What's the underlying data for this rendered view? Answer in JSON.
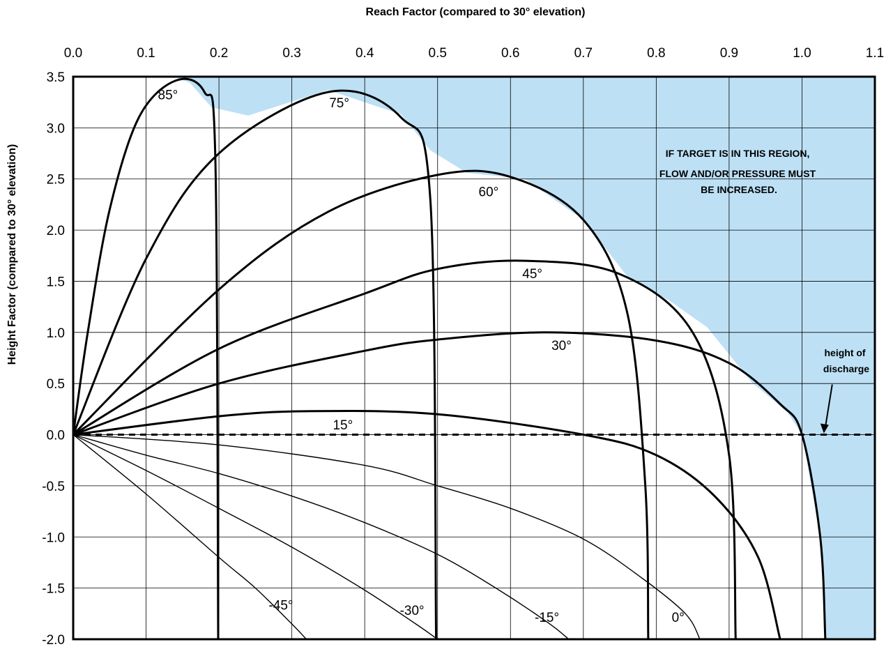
{
  "chart_data": {
    "type": "line",
    "title": "",
    "xlabel": "Reach Factor (compared to 30° elevation)",
    "ylabel": "Height Factor (compared to 30° elevation)",
    "xlim": [
      0.0,
      1.1
    ],
    "ylim": [
      -2.0,
      3.5
    ],
    "x_ticks": [
      "0.0",
      "0.1",
      "0.2",
      "0.3",
      "0.4",
      "0.5",
      "0.6",
      "0.7",
      "0.8",
      "0.9",
      "1.0",
      "1.1"
    ],
    "y_ticks": [
      "3.5",
      "3.0",
      "2.5",
      "2.0",
      "1.5",
      "1.0",
      "0.5",
      "0.0",
      "-0.5",
      "-1.0",
      "-1.5",
      "-2.0"
    ],
    "grid": true,
    "x_axis_position": "top",
    "series": [
      {
        "name": "85°",
        "angle": 85,
        "apex": [
          0.14,
          3.46
        ],
        "asymptote_x": 0.2,
        "weight": "bold",
        "points": [
          [
            0,
            0
          ],
          [
            0.02,
            1.0
          ],
          [
            0.05,
            2.2
          ],
          [
            0.09,
            3.1
          ],
          [
            0.14,
            3.46
          ],
          [
            0.18,
            3.35
          ],
          [
            0.195,
            2.7
          ],
          [
            0.199,
            -2.0
          ]
        ]
      },
      {
        "name": "75°",
        "angle": 75,
        "apex": [
          0.35,
          3.35
        ],
        "asymptote_x": 0.5,
        "weight": "bold",
        "points": [
          [
            0,
            0
          ],
          [
            0.1,
            1.72
          ],
          [
            0.2,
            2.75
          ],
          [
            0.35,
            3.35
          ],
          [
            0.45,
            3.1
          ],
          [
            0.49,
            2.3
          ],
          [
            0.498,
            -2.0
          ]
        ]
      },
      {
        "name": "60°",
        "angle": 60,
        "apex": [
          0.54,
          2.56
        ],
        "asymptote_x": 0.79,
        "weight": "bold",
        "points": [
          [
            0,
            0
          ],
          [
            0.2,
            1.42
          ],
          [
            0.35,
            2.18
          ],
          [
            0.5,
            2.54
          ],
          [
            0.6,
            2.52
          ],
          [
            0.7,
            2.1
          ],
          [
            0.76,
            1.2
          ],
          [
            0.785,
            -0.5
          ],
          [
            0.789,
            -2.0
          ]
        ]
      },
      {
        "name": "45°",
        "angle": 45,
        "apex": [
          0.62,
          1.7
        ],
        "asymptote_x": 0.91,
        "weight": "bold",
        "points": [
          [
            0,
            0
          ],
          [
            0.2,
            0.84
          ],
          [
            0.4,
            1.38
          ],
          [
            0.5,
            1.62
          ],
          [
            0.62,
            1.7
          ],
          [
            0.75,
            1.57
          ],
          [
            0.85,
            1.0
          ],
          [
            0.9,
            -0.2
          ],
          [
            0.909,
            -2.0
          ]
        ]
      },
      {
        "name": "30°",
        "angle": 30,
        "apex": [
          0.65,
          1.0
        ],
        "asymptote_x": 1.03,
        "weight": "bold",
        "points": [
          [
            0,
            0
          ],
          [
            0.2,
            0.5
          ],
          [
            0.4,
            0.82
          ],
          [
            0.5,
            0.93
          ],
          [
            0.65,
            1.0
          ],
          [
            0.8,
            0.92
          ],
          [
            0.9,
            0.7
          ],
          [
            0.97,
            0.3
          ],
          [
            1.0,
            0.0
          ],
          [
            1.025,
            -1.0
          ],
          [
            1.032,
            -2.0
          ]
        ]
      },
      {
        "name": "15°",
        "angle": 15,
        "apex": [
          0.33,
          0.23
        ],
        "asymptote_x": 0.97,
        "weight": "bold",
        "points": [
          [
            0,
            0
          ],
          [
            0.2,
            0.18
          ],
          [
            0.33,
            0.23
          ],
          [
            0.5,
            0.2
          ],
          [
            0.7,
            0.0
          ],
          [
            0.8,
            -0.2
          ],
          [
            0.88,
            -0.6
          ],
          [
            0.94,
            -1.2
          ],
          [
            0.97,
            -2.0
          ]
        ]
      },
      {
        "name": "0°",
        "angle": 0,
        "weight": "normal",
        "points": [
          [
            0,
            0
          ],
          [
            0.2,
            -0.1
          ],
          [
            0.4,
            -0.3
          ],
          [
            0.5,
            -0.5
          ],
          [
            0.6,
            -0.72
          ],
          [
            0.7,
            -1.02
          ],
          [
            0.78,
            -1.4
          ],
          [
            0.84,
            -1.75
          ],
          [
            0.86,
            -2.0
          ]
        ]
      },
      {
        "name": "-15°",
        "angle": -15,
        "weight": "normal",
        "points": [
          [
            0,
            0
          ],
          [
            0.1,
            -0.2
          ],
          [
            0.2,
            -0.38
          ],
          [
            0.3,
            -0.6
          ],
          [
            0.4,
            -0.86
          ],
          [
            0.5,
            -1.17
          ],
          [
            0.58,
            -1.5
          ],
          [
            0.65,
            -1.83
          ],
          [
            0.68,
            -2.0
          ]
        ]
      },
      {
        "name": "-30°",
        "angle": -30,
        "weight": "normal",
        "points": [
          [
            0,
            0
          ],
          [
            0.1,
            -0.35
          ],
          [
            0.2,
            -0.72
          ],
          [
            0.3,
            -1.1
          ],
          [
            0.4,
            -1.52
          ],
          [
            0.47,
            -1.85
          ],
          [
            0.5,
            -2.0
          ]
        ]
      },
      {
        "name": "-45°",
        "angle": -45,
        "weight": "normal",
        "points": [
          [
            0,
            0
          ],
          [
            0.1,
            -0.58
          ],
          [
            0.2,
            -1.2
          ],
          [
            0.25,
            -1.5
          ],
          [
            0.3,
            -1.85
          ],
          [
            0.32,
            -2.0
          ]
        ]
      }
    ],
    "labels": [
      {
        "text": "85°",
        "series": "85°",
        "at": [
          0.13,
          3.28
        ]
      },
      {
        "text": "75°",
        "series": "75°",
        "at": [
          0.365,
          3.2
        ]
      },
      {
        "text": "60°",
        "series": "60°",
        "at": [
          0.57,
          2.33
        ]
      },
      {
        "text": "45°",
        "series": "45°",
        "at": [
          0.63,
          1.53
        ]
      },
      {
        "text": "30°",
        "series": "30°",
        "at": [
          0.67,
          0.83
        ]
      },
      {
        "text": "15°",
        "series": "15°",
        "at": [
          0.37,
          0.05
        ]
      },
      {
        "text": "0°",
        "series": "0°",
        "at": [
          0.83,
          -1.83
        ]
      },
      {
        "text": "-15°",
        "series": "-15°",
        "at": [
          0.65,
          -1.83
        ]
      },
      {
        "text": "-30°",
        "series": "-30°",
        "at": [
          0.465,
          -1.76
        ]
      },
      {
        "text": "-45°",
        "series": "-45°",
        "at": [
          0.285,
          -1.71
        ]
      }
    ],
    "discharge_line": {
      "y": 0.0,
      "style": "dashed",
      "label": [
        "height of",
        "discharge"
      ],
      "arrow_to": [
        1.03,
        0.0
      ]
    },
    "shaded_region": {
      "color": "#bde0f5",
      "description_lines": [
        "IF TARGET IS IN THIS REGION,",
        "FLOW AND/OR PRESSURE MUST",
        "BE INCREASED."
      ]
    }
  }
}
